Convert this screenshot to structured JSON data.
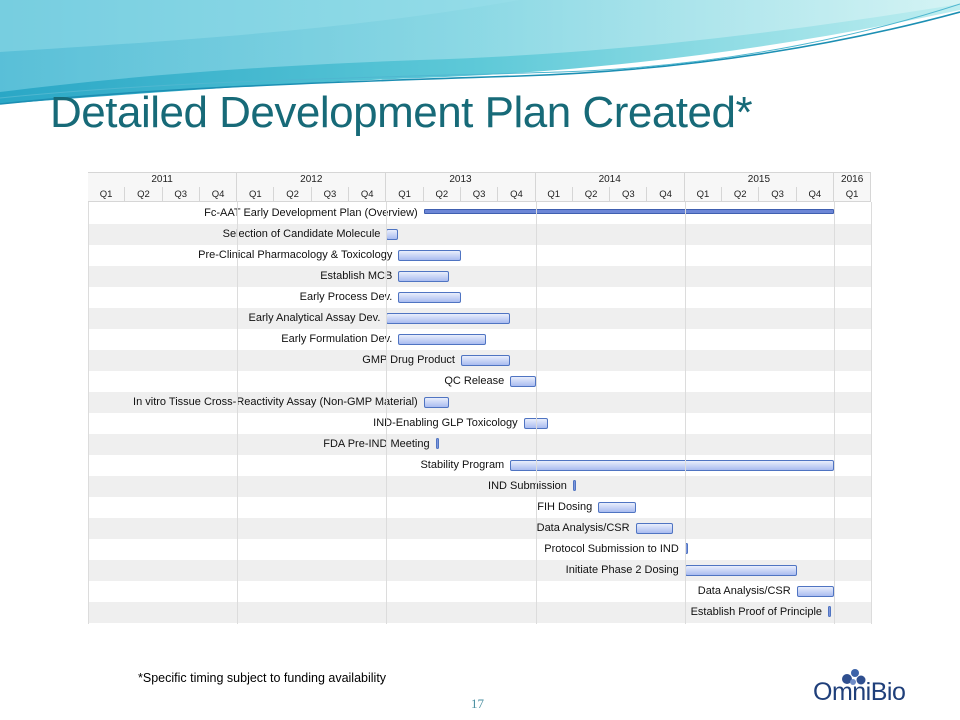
{
  "slide": {
    "title": "Detailed Development Plan Created*",
    "footnote": "*Specific timing subject to funding availability",
    "page_number": "17",
    "logo": {
      "text": "OmniBio"
    }
  },
  "colors": {
    "title": "#176a78",
    "bar_border": "#4f74c2",
    "bar_fill": "#a9bcf0",
    "wave_teal": "#3fb6c9"
  },
  "chart_data": {
    "type": "gantt",
    "years": [
      {
        "label": "2011",
        "quarters": 4
      },
      {
        "label": "2012",
        "quarters": 4
      },
      {
        "label": "2013",
        "quarters": 4
      },
      {
        "label": "2014",
        "quarters": 4
      },
      {
        "label": "2015",
        "quarters": 4
      },
      {
        "label": "2016",
        "quarters": 1
      }
    ],
    "quarters": [
      "Q1",
      "Q2",
      "Q3",
      "Q4",
      "Q1",
      "Q2",
      "Q3",
      "Q4",
      "Q1",
      "Q2",
      "Q3",
      "Q4",
      "Q1",
      "Q2",
      "Q3",
      "Q4",
      "Q1",
      "Q2",
      "Q3",
      "Q4",
      "Q1"
    ],
    "time_start": 2011.0,
    "time_end": 2016.25,
    "tasks": [
      {
        "name": "Fc-AAT Early Development Plan (Overview)",
        "start": 2013.25,
        "end": 2016.0,
        "kind": "summary"
      },
      {
        "name": "Selection of Candidate Molecule",
        "start": 2013.0,
        "end": 2013.08,
        "kind": "bar"
      },
      {
        "name": "Pre-Clinical Pharmacology & Toxicology",
        "start": 2013.08,
        "end": 2013.5,
        "kind": "bar"
      },
      {
        "name": "Establish MCB",
        "start": 2013.08,
        "end": 2013.42,
        "kind": "bar"
      },
      {
        "name": "Early Process Dev.",
        "start": 2013.08,
        "end": 2013.5,
        "kind": "bar"
      },
      {
        "name": "Early Analytical Assay Dev.",
        "start": 2013.0,
        "end": 2013.83,
        "kind": "bar"
      },
      {
        "name": "Early Formulation Dev.",
        "start": 2013.08,
        "end": 2013.67,
        "kind": "bar"
      },
      {
        "name": "GMP Drug Product",
        "start": 2013.5,
        "end": 2013.83,
        "kind": "bar"
      },
      {
        "name": "QC Release",
        "start": 2013.83,
        "end": 2014.0,
        "kind": "bar"
      },
      {
        "name": "In vitro Tissue Cross-Reactivity Assay (Non-GMP Material)",
        "start": 2013.25,
        "end": 2013.42,
        "kind": "bar"
      },
      {
        "name": "IND-Enabling GLP Toxicology",
        "start": 2013.92,
        "end": 2014.08,
        "kind": "bar"
      },
      {
        "name": "FDA Pre-IND Meeting",
        "start": 2013.33,
        "end": 2013.35,
        "kind": "milestone"
      },
      {
        "name": "Stability Program",
        "start": 2013.83,
        "end": 2016.0,
        "kind": "bar"
      },
      {
        "name": "IND Submission",
        "start": 2014.25,
        "end": 2014.27,
        "kind": "milestone"
      },
      {
        "name": "FIH Dosing",
        "start": 2014.42,
        "end": 2014.67,
        "kind": "bar"
      },
      {
        "name": "Data Analysis/CSR",
        "start": 2014.67,
        "end": 2014.92,
        "kind": "bar"
      },
      {
        "name": "Protocol Submission to IND",
        "start": 2015.0,
        "end": 2015.02,
        "kind": "milestone"
      },
      {
        "name": "Initiate Phase 2 Dosing",
        "start": 2015.0,
        "end": 2015.75,
        "kind": "bar"
      },
      {
        "name": "Data Analysis/CSR",
        "start": 2015.75,
        "end": 2016.0,
        "kind": "bar"
      },
      {
        "name": "Establish Proof of Principle",
        "start": 2015.96,
        "end": 2015.98,
        "kind": "milestone"
      }
    ]
  }
}
